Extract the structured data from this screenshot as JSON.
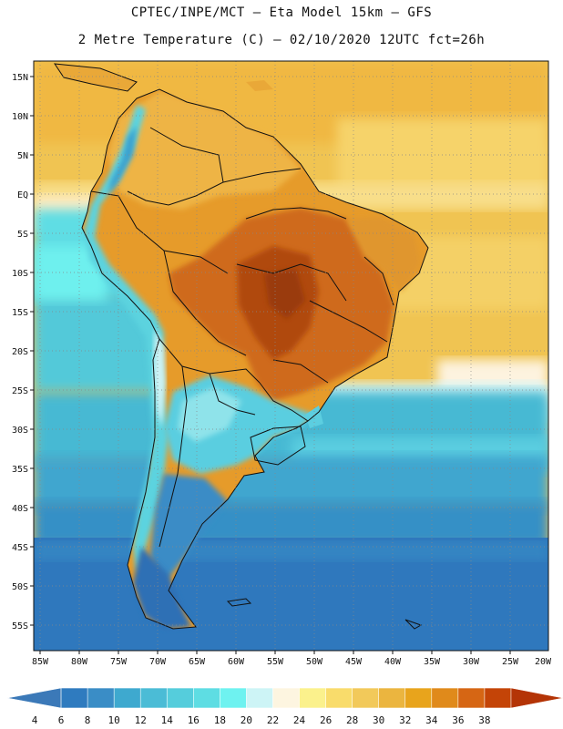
{
  "title_line1": "CPTEC/INPE/MCT –  Eta Model 15km – GFS",
  "title_line2": "2 Metre Temperature (C) – 02/10/2020 12UTC fct=26h",
  "lat_labels": [
    "15N",
    "10N",
    "5N",
    "EQ",
    "5S",
    "10S",
    "15S",
    "20S",
    "25S",
    "30S",
    "35S",
    "40S",
    "45S",
    "50S",
    "55S"
  ],
  "lon_labels": [
    "85W",
    "80W",
    "75W",
    "70W",
    "65W",
    "60W",
    "55W",
    "50W",
    "45W",
    "40W",
    "35W",
    "30W",
    "25W",
    "20W"
  ],
  "colorbar": {
    "ticks": [
      "4",
      "6",
      "8",
      "10",
      "12",
      "14",
      "16",
      "18",
      "20",
      "22",
      "24",
      "26",
      "28",
      "30",
      "32",
      "34",
      "36",
      "38"
    ],
    "colors": [
      "#3b79b8",
      "#2f7bbf",
      "#3a8dc6",
      "#3ea9cf",
      "#4bbcd6",
      "#55cddc",
      "#5edde3",
      "#6ef2f0",
      "#cdf4f6",
      "#fdf5e0",
      "#fbf18c",
      "#f9dc6b",
      "#f2c95a",
      "#ebb53f",
      "#e8a41c",
      "#e08a1b",
      "#d66614",
      "#c44407",
      "#b43406"
    ]
  }
}
